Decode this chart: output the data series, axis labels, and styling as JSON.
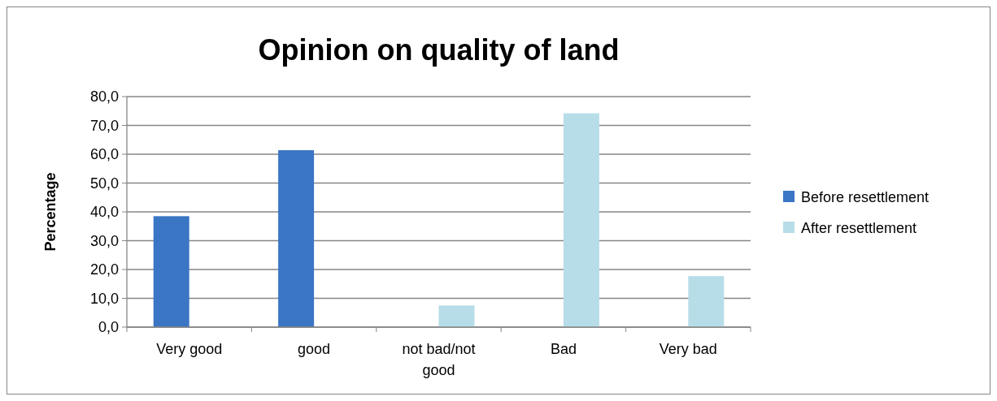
{
  "chart_data": {
    "type": "bar",
    "title": "Opinion on quality of land",
    "ylabel": "Percentage",
    "categories": [
      "Very good",
      "good",
      "not bad/not good",
      "Bad",
      "Very bad"
    ],
    "series": [
      {
        "name": "Before resettlement",
        "color": "#3a76c4",
        "values": [
          38.5,
          61.4,
          null,
          null,
          null
        ]
      },
      {
        "name": "After resettlement",
        "color": "#b7dde8",
        "values": [
          null,
          null,
          7.5,
          74.2,
          17.7
        ]
      }
    ],
    "ylim": [
      0,
      80
    ],
    "yticks": [
      {
        "value": 0,
        "label": "0,0"
      },
      {
        "value": 10,
        "label": "10,0"
      },
      {
        "value": 20,
        "label": "20,0"
      },
      {
        "value": 30,
        "label": "30,0"
      },
      {
        "value": 40,
        "label": "40,0"
      },
      {
        "value": 50,
        "label": "50,0"
      },
      {
        "value": 60,
        "label": "60,0"
      },
      {
        "value": 70,
        "label": "70,0"
      },
      {
        "value": 80,
        "label": "80,0"
      }
    ],
    "grid": "y",
    "legend": "right"
  }
}
